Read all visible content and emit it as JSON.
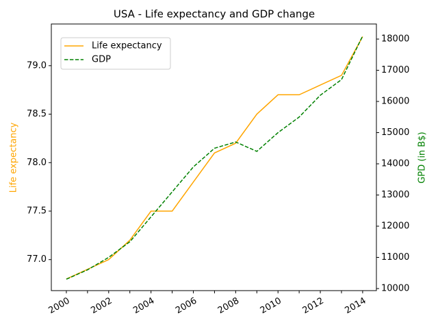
{
  "chart_data": {
    "type": "line",
    "title": "USA - Life expectancy and GDP change",
    "ylabel": "Life expectancy",
    "y2label": "GPD (in B$)",
    "x": [
      2000,
      2001,
      2002,
      2003,
      2004,
      2005,
      2006,
      2007,
      2008,
      2009,
      2010,
      2011,
      2012,
      2013,
      2014
    ],
    "series": [
      {
        "name": "Life expectancy",
        "color": "#ffa500",
        "linestyle": "solid",
        "axis": "y",
        "values": [
          76.8,
          76.9,
          77.0,
          77.2,
          77.5,
          77.5,
          77.8,
          78.1,
          78.2,
          78.5,
          78.7,
          78.7,
          78.8,
          78.9,
          79.3
        ]
      },
      {
        "name": "GDP",
        "color": "#008000",
        "linestyle": "dashed",
        "axis": "y2",
        "values": [
          10300,
          10600,
          11000,
          11500,
          12300,
          13100,
          13900,
          14500,
          14700,
          14400,
          15000,
          15500,
          16200,
          16700,
          18100
        ]
      }
    ],
    "xlim": [
      1999.29,
      2014.65
    ],
    "xticks": [
      2000,
      2002,
      2004,
      2006,
      2008,
      2010,
      2012,
      2014
    ],
    "xminor_ticks": [
      2001,
      2003,
      2005,
      2007,
      2009,
      2011,
      2013
    ],
    "ylim": [
      76.68,
      79.43
    ],
    "yticks": [
      {
        "value": 77,
        "label": "77.0"
      },
      77.5,
      {
        "value": 78,
        "label": "78.0"
      },
      78.5,
      {
        "value": 79,
        "label": "79.0"
      }
    ],
    "y2lim": [
      9934,
      18484
    ],
    "y2ticks": [
      10000,
      11000,
      12000,
      13000,
      14000,
      15000,
      16000,
      17000,
      18000
    ],
    "legend": "upper left"
  }
}
